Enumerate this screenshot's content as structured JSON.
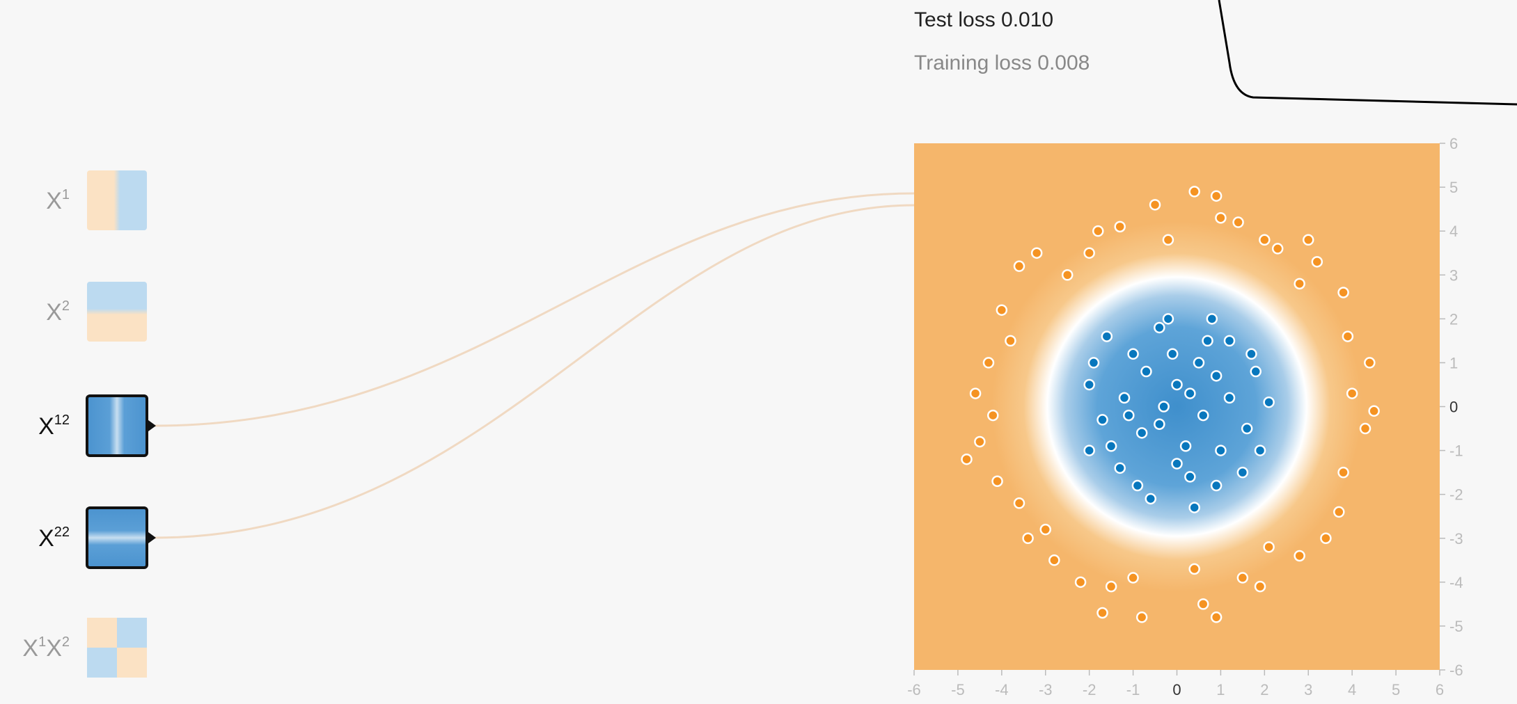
{
  "features": [
    {
      "label": [
        "X",
        "1"
      ],
      "active": false
    },
    {
      "label": [
        "X",
        "2"
      ],
      "active": false
    },
    {
      "label": [
        "X",
        "12"
      ],
      "active": true
    },
    {
      "label": [
        "X",
        "22"
      ],
      "active": true
    },
    {
      "label": [
        "X",
        "1",
        "X",
        "2"
      ],
      "active": false
    }
  ],
  "test_loss": "Test loss 0.010",
  "training_loss": "Training loss 0.008",
  "plot": {
    "xlim": [
      -6,
      6
    ],
    "ylim": [
      -6,
      6
    ],
    "xticks": [
      -6,
      -5,
      -4,
      -3,
      -2,
      -1,
      0,
      1,
      2,
      3,
      4,
      5,
      6
    ],
    "yticks": [
      6,
      5,
      4,
      3,
      2,
      1,
      0,
      -1,
      -2,
      -3,
      -4,
      -5,
      -6
    ],
    "orange_color": "#f59322",
    "blue_color": "#0877bd",
    "orange": [
      [
        0.4,
        4.9
      ],
      [
        -0.5,
        4.6
      ],
      [
        1.0,
        4.3
      ],
      [
        -1.8,
        4.0
      ],
      [
        2.0,
        3.8
      ],
      [
        -3.2,
        3.5
      ],
      [
        3.2,
        3.3
      ],
      [
        -2.5,
        3.0
      ],
      [
        2.8,
        2.8
      ],
      [
        -4.0,
        2.2
      ],
      [
        3.8,
        2.6
      ],
      [
        -4.3,
        1.0
      ],
      [
        4.4,
        1.0
      ],
      [
        -4.6,
        0.3
      ],
      [
        4.0,
        0.3
      ],
      [
        -4.5,
        -0.8
      ],
      [
        4.3,
        -0.5
      ],
      [
        -4.1,
        -1.7
      ],
      [
        3.8,
        -1.5
      ],
      [
        -3.6,
        -2.2
      ],
      [
        3.7,
        -2.4
      ],
      [
        -3.4,
        -3.0
      ],
      [
        2.8,
        -3.4
      ],
      [
        -2.8,
        -3.5
      ],
      [
        -2.2,
        -4.0
      ],
      [
        1.9,
        -4.1
      ],
      [
        -1.0,
        -3.9
      ],
      [
        0.4,
        -3.7
      ],
      [
        0.6,
        -4.5
      ],
      [
        -0.8,
        -4.8
      ],
      [
        -1.7,
        -4.7
      ],
      [
        0.9,
        -4.8
      ],
      [
        2.1,
        -3.2
      ],
      [
        -3.0,
        -2.8
      ],
      [
        -4.2,
        -0.2
      ],
      [
        4.5,
        -0.1
      ],
      [
        -3.8,
        1.5
      ],
      [
        3.9,
        1.6
      ],
      [
        -2.0,
        3.5
      ],
      [
        2.3,
        3.6
      ],
      [
        -1.3,
        4.1
      ],
      [
        1.4,
        4.2
      ],
      [
        -0.2,
        3.8
      ],
      [
        0.9,
        4.8
      ],
      [
        -3.6,
        3.2
      ],
      [
        3.4,
        -3.0
      ],
      [
        -4.8,
        -1.2
      ],
      [
        -1.5,
        -4.1
      ],
      [
        1.5,
        -3.9
      ],
      [
        3.0,
        3.8
      ]
    ],
    "blue": [
      [
        -0.4,
        1.8
      ],
      [
        0.8,
        2.0
      ],
      [
        -0.2,
        2.0
      ],
      [
        1.2,
        1.5
      ],
      [
        -1.6,
        1.6
      ],
      [
        -1.0,
        1.2
      ],
      [
        0.5,
        1.0
      ],
      [
        1.8,
        0.8
      ],
      [
        -2.0,
        0.5
      ],
      [
        -1.2,
        0.2
      ],
      [
        0.0,
        0.5
      ],
      [
        0.6,
        -0.2
      ],
      [
        2.1,
        0.1
      ],
      [
        1.6,
        -0.5
      ],
      [
        -1.7,
        -0.3
      ],
      [
        -0.8,
        -0.6
      ],
      [
        0.2,
        -0.9
      ],
      [
        1.0,
        -1.0
      ],
      [
        -2.0,
        -1.0
      ],
      [
        -1.3,
        -1.4
      ],
      [
        0.3,
        -1.6
      ],
      [
        1.5,
        -1.5
      ],
      [
        -0.6,
        -2.1
      ],
      [
        0.4,
        -2.3
      ],
      [
        -0.3,
        0.0
      ],
      [
        0.9,
        0.7
      ],
      [
        -0.7,
        0.8
      ],
      [
        1.9,
        -1.0
      ],
      [
        -1.5,
        -0.9
      ],
      [
        0.0,
        -1.3
      ],
      [
        0.7,
        1.5
      ],
      [
        -0.9,
        -1.8
      ],
      [
        1.2,
        0.2
      ],
      [
        -0.4,
        -0.4
      ],
      [
        0.3,
        0.3
      ],
      [
        1.7,
        1.2
      ],
      [
        -1.9,
        1.0
      ],
      [
        -0.1,
        1.2
      ],
      [
        0.9,
        -1.8
      ],
      [
        -1.1,
        -0.2
      ]
    ]
  }
}
